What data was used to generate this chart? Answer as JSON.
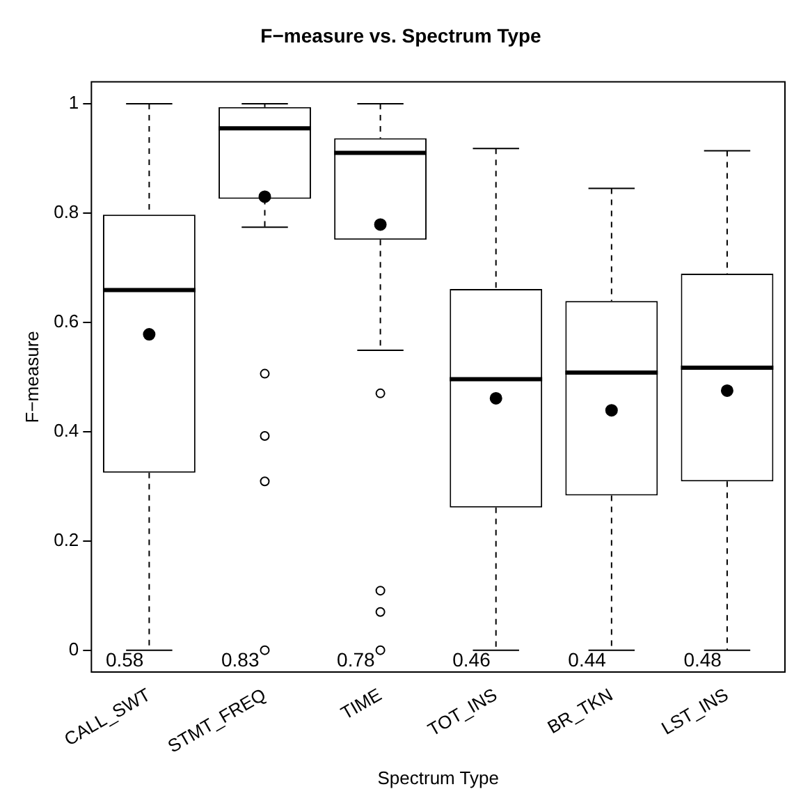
{
  "chart_data": {
    "type": "box",
    "title": "F−measure vs. Spectrum Type",
    "xlabel": "Spectrum Type",
    "ylabel": "F−measure",
    "categories": [
      "CALL_SWT",
      "STMT_FREQ",
      "TIME",
      "TOT_INS",
      "BR_TKN",
      "LST_INS"
    ],
    "boxes": [
      {
        "low": 0,
        "q1": 0.325,
        "median": 0.659,
        "q3": 0.797,
        "high": 1,
        "mean": 0.578
      },
      {
        "low": 0.774,
        "q1": 0.826,
        "median": 0.955,
        "q3": 0.994,
        "high": 1,
        "mean": 0.83,
        "outliers": [
          0.506,
          0.392,
          0.309,
          0
        ]
      },
      {
        "low": 0.549,
        "q1": 0.751,
        "median": 0.91,
        "q3": 0.937,
        "high": 1,
        "mean": 0.779,
        "outliers": [
          0.47,
          0.109,
          0.07,
          0
        ]
      },
      {
        "low": 0,
        "q1": 0.261,
        "median": 0.496,
        "q3": 0.661,
        "high": 0.918,
        "mean": 0.461
      },
      {
        "low": 0,
        "q1": 0.283,
        "median": 0.508,
        "q3": 0.639,
        "high": 0.845,
        "mean": 0.439
      },
      {
        "low": 0,
        "q1": 0.309,
        "median": 0.517,
        "q3": 0.689,
        "high": 0.914,
        "mean": 0.475
      }
    ],
    "annotations": [
      "0.58",
      "0.83",
      "0.78",
      "0.46",
      "0.44",
      "0.48"
    ],
    "ylim": [
      -0.04,
      1.04
    ],
    "yticks": [
      0,
      0.2,
      0.4,
      0.6,
      0.8,
      1
    ],
    "grid": false,
    "legend": false
  }
}
